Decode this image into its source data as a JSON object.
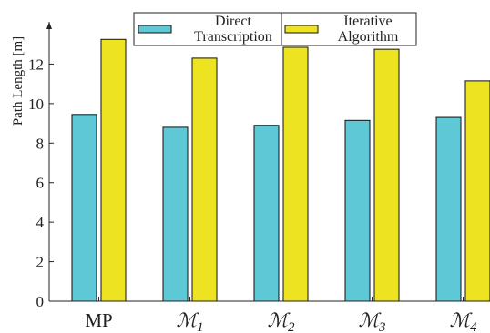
{
  "chart_data": {
    "type": "bar",
    "title": "",
    "xlabel": "",
    "ylabel": "Path Length [m]",
    "ylim": [
      0,
      14
    ],
    "yticks": [
      "0",
      "2",
      "4",
      "6",
      "8",
      "10",
      "12"
    ],
    "categories": [
      {
        "main": "MP",
        "sub": "",
        "italic": false
      },
      {
        "main": "ℳ",
        "sub": "1",
        "italic": true
      },
      {
        "main": "ℳ",
        "sub": "2",
        "italic": true
      },
      {
        "main": "ℳ",
        "sub": "3",
        "italic": true
      },
      {
        "main": "ℳ",
        "sub": "4",
        "italic": true
      }
    ],
    "series": [
      {
        "name": "Direct Transcription",
        "name_lines": [
          "Direct",
          "Transcription"
        ],
        "color": "#5ec8d6",
        "values": [
          9.45,
          8.8,
          8.9,
          9.15,
          9.3
        ]
      },
      {
        "name": "Iterative Algorithm",
        "name_lines": [
          "Iterative",
          "Algorithm"
        ],
        "color": "#ede321",
        "values": [
          13.25,
          12.3,
          12.85,
          12.75,
          11.15
        ]
      }
    ],
    "grid": false,
    "legend_position": "top"
  }
}
